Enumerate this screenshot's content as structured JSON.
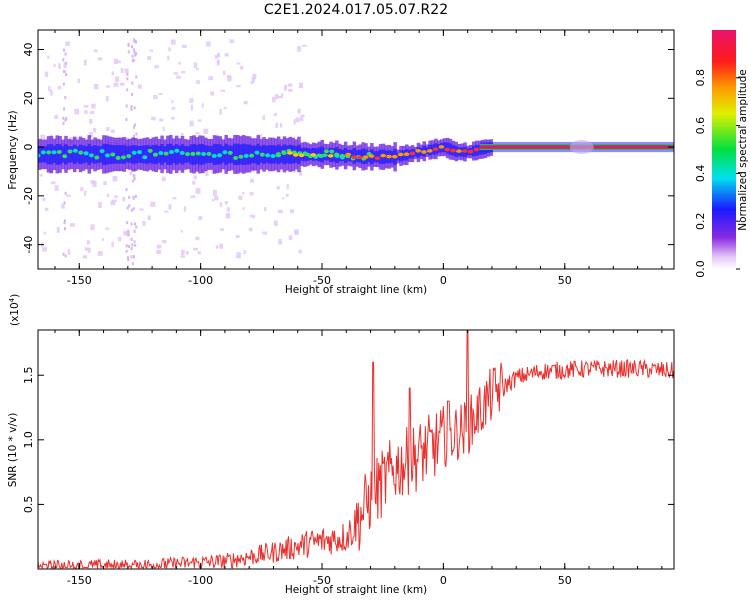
{
  "title": "C2E1.2024.017.05.07.R22",
  "chart_data": [
    {
      "type": "heatmap",
      "name": "spectrogram",
      "xlabel": "Height of straight line (km)",
      "ylabel": "Frequency (Hz)",
      "xlim": [
        -167,
        95
      ],
      "ylim": [
        -50,
        48
      ],
      "x_ticks": [
        -150,
        -100,
        -50,
        0,
        50
      ],
      "y_ticks": [
        -40,
        -20,
        0,
        20,
        40
      ],
      "colorbar": {
        "label": "Normalized spectral amplitude",
        "range": [
          0,
          1
        ],
        "ticks": [
          "0.0",
          "0.2",
          "0.4",
          "0.6",
          "0.8"
        ]
      },
      "ridge_frequency_hz": {
        "x": [
          -167,
          -150,
          -130,
          -110,
          -90,
          -70,
          -50,
          -30,
          -20,
          -10,
          0,
          5,
          10,
          20,
          40,
          60,
          95
        ],
        "y": [
          -3,
          -3,
          -3,
          -3,
          -3,
          -3,
          -3,
          -4,
          -4,
          -2,
          0,
          -2,
          -2,
          0,
          0,
          0,
          0
        ]
      }
    },
    {
      "type": "line",
      "name": "snr",
      "xlabel": "Height of straight line (km)",
      "ylabel": "SNR (10 * v/v)",
      "scale_label": "(x10",
      "scale_exp": "4",
      "scale_close": ")",
      "xlim": [
        -167,
        95
      ],
      "ylim": [
        0,
        1.85
      ],
      "x_ticks": [
        -150,
        -100,
        -50,
        0,
        50
      ],
      "y_ticks": [
        0.5,
        1.0,
        1.5
      ],
      "y_tick_labels": [
        "0.5",
        "1.0",
        "1.5"
      ],
      "trend": {
        "x": [
          -167,
          -120,
          -90,
          -70,
          -55,
          -40,
          -36,
          -30,
          -20,
          -10,
          0,
          10,
          20,
          30,
          40,
          60,
          80,
          95
        ],
        "y": [
          0.02,
          0.03,
          0.06,
          0.13,
          0.2,
          0.25,
          0.35,
          0.55,
          0.78,
          0.88,
          1.0,
          1.1,
          1.35,
          1.48,
          1.53,
          1.55,
          1.55,
          1.53
        ]
      },
      "spikes": {
        "x": [
          -29,
          10,
          -14,
          2
        ],
        "y": [
          1.6,
          1.85,
          1.4,
          1.3
        ]
      },
      "color": "#e8302e"
    }
  ]
}
